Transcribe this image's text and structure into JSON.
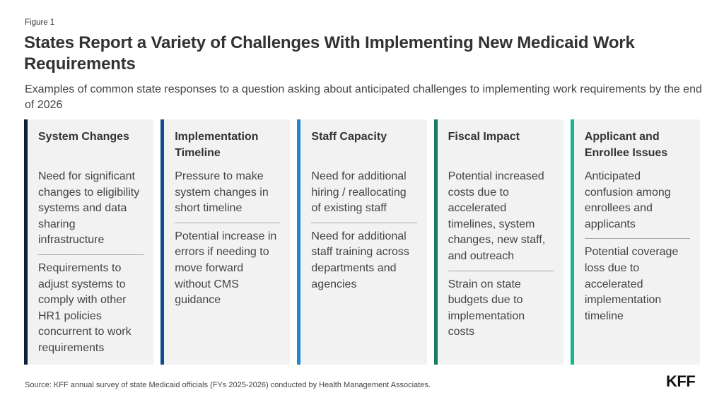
{
  "figure_label": "Figure 1",
  "title": "States Report a Variety of Challenges With Implementing New Medicaid Work Requirements",
  "subtitle": "Examples of common state responses to a question asking about anticipated challenges to implementing work requirements by the end of 2026",
  "columns": [
    {
      "title": "System Changes",
      "color": "#0b2239",
      "items": [
        "Need for significant changes to eligibility systems and data sharing infrastructure",
        "Requirements to adjust systems to comply with other HR1 policies concurrent to work requirements"
      ]
    },
    {
      "title": "Implementation Timeline",
      "color": "#0d4f8b",
      "items": [
        "Pressure to make system changes in short timeline",
        "Potential increase in errors if needing to move forward without CMS guidance"
      ]
    },
    {
      "title": "Staff Capacity",
      "color": "#1f86d6",
      "items": [
        "Need for additional hiring / reallocating of existing staff",
        "Need for additional staff training across departments and agencies"
      ]
    },
    {
      "title": "Fiscal Impact",
      "color": "#1a7a63",
      "items": [
        "Potential increased costs due to accelerated timelines, system changes, new staff, and outreach",
        "Strain on state budgets due to implementation costs"
      ]
    },
    {
      "title": "Applicant and Enrollee Issues",
      "color": "#12b88b",
      "items": [
        "Anticipated confusion among enrollees and applicants",
        "Potential coverage loss due to accelerated implementation timeline"
      ]
    }
  ],
  "source": "Source: KFF annual survey of state Medicaid officials (FYs 2025-2026) conducted by Health Management Associates.",
  "logo": "KFF"
}
